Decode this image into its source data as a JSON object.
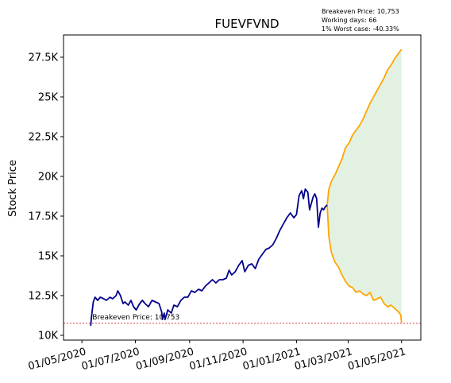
{
  "chart_data": {
    "type": "line",
    "title": "FUEVFVND",
    "xlabel": "",
    "ylabel": "Stock Price",
    "info": [
      "Breakeven Price: 10,753",
      "Working days: 66",
      "1% Worst case: -40.33%"
    ],
    "breakeven_label": "Breakeven Price: 10,753",
    "breakeven": 10753,
    "xlim": [
      "2020-04-10",
      "2021-05-23"
    ],
    "ylim": [
      9700,
      28900
    ],
    "yticks": [
      10000,
      12500,
      15000,
      17500,
      20000,
      22500,
      25000,
      27500
    ],
    "yticklabels": [
      "10K",
      "12.5K",
      "15K",
      "17.5K",
      "20K",
      "22.5K",
      "25K",
      "27.5K"
    ],
    "xticks": [
      "2020-05-01",
      "2020-07-01",
      "2020-09-01",
      "2020-11-01",
      "2021-01-01",
      "2021-03-01",
      "2021-05-01"
    ],
    "xticklabels": [
      "01/05/2020",
      "01/07/2020",
      "01/09/2020",
      "01/11/2020",
      "01/01/2021",
      "01/03/2021",
      "01/05/2021"
    ],
    "colors": {
      "history": "#00008b",
      "projection": "#ffa500",
      "band": "#e3f1e2",
      "breakeven": "#d62728"
    },
    "series": [
      {
        "name": "history",
        "points": [
          [
            "2020-05-11",
            10600
          ],
          [
            "2020-05-12",
            11200
          ],
          [
            "2020-05-14",
            12100
          ],
          [
            "2020-05-16",
            12400
          ],
          [
            "2020-05-19",
            12200
          ],
          [
            "2020-05-22",
            12400
          ],
          [
            "2020-05-26",
            12300
          ],
          [
            "2020-05-29",
            12200
          ],
          [
            "2020-06-02",
            12400
          ],
          [
            "2020-06-05",
            12300
          ],
          [
            "2020-06-09",
            12500
          ],
          [
            "2020-06-11",
            12800
          ],
          [
            "2020-06-14",
            12500
          ],
          [
            "2020-06-17",
            12000
          ],
          [
            "2020-06-19",
            12100
          ],
          [
            "2020-06-23",
            11900
          ],
          [
            "2020-06-26",
            12200
          ],
          [
            "2020-06-29",
            11800
          ],
          [
            "2020-07-02",
            11600
          ],
          [
            "2020-07-06",
            12000
          ],
          [
            "2020-07-09",
            12200
          ],
          [
            "2020-07-12",
            12000
          ],
          [
            "2020-07-16",
            11800
          ],
          [
            "2020-07-20",
            12200
          ],
          [
            "2020-07-24",
            12100
          ],
          [
            "2020-07-28",
            12000
          ],
          [
            "2020-07-31",
            11500
          ],
          [
            "2020-08-01",
            11000
          ],
          [
            "2020-08-03",
            11400
          ],
          [
            "2020-08-04",
            11000
          ],
          [
            "2020-08-07",
            11600
          ],
          [
            "2020-08-11",
            11400
          ],
          [
            "2020-08-14",
            11900
          ],
          [
            "2020-08-18",
            11800
          ],
          [
            "2020-08-22",
            12200
          ],
          [
            "2020-08-26",
            12400
          ],
          [
            "2020-08-30",
            12400
          ],
          [
            "2020-09-03",
            12800
          ],
          [
            "2020-09-07",
            12700
          ],
          [
            "2020-09-11",
            12900
          ],
          [
            "2020-09-15",
            12800
          ],
          [
            "2020-09-19",
            13100
          ],
          [
            "2020-09-23",
            13300
          ],
          [
            "2020-09-27",
            13500
          ],
          [
            "2020-10-01",
            13300
          ],
          [
            "2020-10-05",
            13500
          ],
          [
            "2020-10-09",
            13500
          ],
          [
            "2020-10-13",
            13600
          ],
          [
            "2020-10-16",
            14100
          ],
          [
            "2020-10-19",
            13800
          ],
          [
            "2020-10-23",
            14000
          ],
          [
            "2020-10-27",
            14400
          ],
          [
            "2020-10-31",
            14700
          ],
          [
            "2020-11-03",
            14000
          ],
          [
            "2020-11-07",
            14400
          ],
          [
            "2020-11-11",
            14500
          ],
          [
            "2020-11-15",
            14200
          ],
          [
            "2020-11-19",
            14800
          ],
          [
            "2020-11-23",
            15100
          ],
          [
            "2020-11-27",
            15400
          ],
          [
            "2020-12-01",
            15500
          ],
          [
            "2020-12-05",
            15700
          ],
          [
            "2020-12-09",
            16100
          ],
          [
            "2020-12-13",
            16600
          ],
          [
            "2020-12-17",
            17000
          ],
          [
            "2020-12-21",
            17400
          ],
          [
            "2020-12-25",
            17700
          ],
          [
            "2020-12-29",
            17400
          ],
          [
            "2021-01-01",
            17600
          ],
          [
            "2021-01-04",
            18800
          ],
          [
            "2021-01-07",
            19100
          ],
          [
            "2021-01-09",
            18600
          ],
          [
            "2021-01-11",
            19200
          ],
          [
            "2021-01-14",
            19000
          ],
          [
            "2021-01-16",
            17900
          ],
          [
            "2021-01-18",
            18300
          ],
          [
            "2021-01-20",
            18700
          ],
          [
            "2021-01-22",
            18900
          ],
          [
            "2021-01-24",
            18600
          ],
          [
            "2021-01-26",
            16800
          ],
          [
            "2021-01-28",
            17700
          ],
          [
            "2021-01-30",
            18000
          ],
          [
            "2021-02-01",
            17900
          ],
          [
            "2021-02-03",
            18100
          ],
          [
            "2021-02-05",
            18200
          ]
        ]
      },
      {
        "name": "upper",
        "points": [
          [
            "2021-02-05",
            18200
          ],
          [
            "2021-02-07",
            19200
          ],
          [
            "2021-02-10",
            19700
          ],
          [
            "2021-02-14",
            20100
          ],
          [
            "2021-02-18",
            20600
          ],
          [
            "2021-02-22",
            21100
          ],
          [
            "2021-02-26",
            21800
          ],
          [
            "2021-03-02",
            22100
          ],
          [
            "2021-03-06",
            22600
          ],
          [
            "2021-03-10",
            22900
          ],
          [
            "2021-03-14",
            23200
          ],
          [
            "2021-03-18",
            23600
          ],
          [
            "2021-03-22",
            24100
          ],
          [
            "2021-03-26",
            24600
          ],
          [
            "2021-03-30",
            25000
          ],
          [
            "2021-04-03",
            25400
          ],
          [
            "2021-04-07",
            25800
          ],
          [
            "2021-04-11",
            26200
          ],
          [
            "2021-04-15",
            26700
          ],
          [
            "2021-04-19",
            27000
          ],
          [
            "2021-04-23",
            27400
          ],
          [
            "2021-04-27",
            27700
          ],
          [
            "2021-05-01",
            28000
          ]
        ]
      },
      {
        "name": "lower",
        "points": [
          [
            "2021-02-05",
            18200
          ],
          [
            "2021-02-07",
            16200
          ],
          [
            "2021-02-10",
            15200
          ],
          [
            "2021-02-14",
            14600
          ],
          [
            "2021-02-18",
            14300
          ],
          [
            "2021-02-22",
            13800
          ],
          [
            "2021-02-26",
            13400
          ],
          [
            "2021-03-02",
            13100
          ],
          [
            "2021-03-06",
            13000
          ],
          [
            "2021-03-10",
            12700
          ],
          [
            "2021-03-14",
            12800
          ],
          [
            "2021-03-18",
            12600
          ],
          [
            "2021-03-22",
            12500
          ],
          [
            "2021-03-26",
            12700
          ],
          [
            "2021-03-30",
            12200
          ],
          [
            "2021-04-03",
            12300
          ],
          [
            "2021-04-07",
            12400
          ],
          [
            "2021-04-11",
            12000
          ],
          [
            "2021-04-15",
            11800
          ],
          [
            "2021-04-19",
            11900
          ],
          [
            "2021-04-23",
            11700
          ],
          [
            "2021-04-27",
            11500
          ],
          [
            "2021-04-30",
            11300
          ],
          [
            "2021-05-01",
            10800
          ]
        ]
      }
    ]
  }
}
